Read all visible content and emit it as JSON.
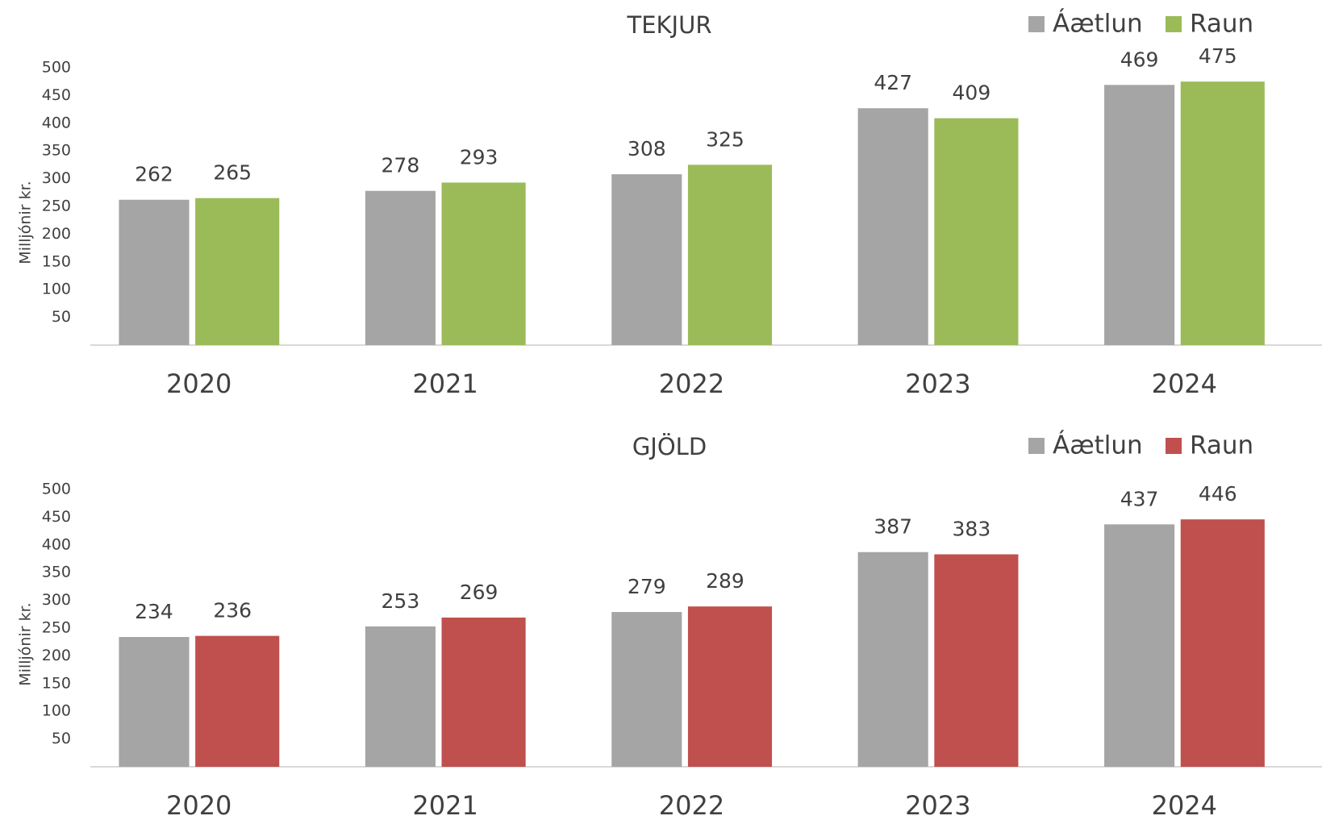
{
  "chart_data": [
    {
      "type": "bar",
      "title": "TEKJUR",
      "y_label": "Milljónir kr.",
      "categories": [
        "2020",
        "2021",
        "2022",
        "2023",
        "2024"
      ],
      "series": [
        {
          "name": "Áætlun",
          "color": "#a5a5a5",
          "values": [
            262,
            278,
            308,
            427,
            469
          ]
        },
        {
          "name": "Raun",
          "color": "#9bbb59",
          "values": [
            265,
            293,
            325,
            409,
            475
          ]
        }
      ],
      "ylim": [
        0,
        500
      ],
      "yticks": [
        50,
        100,
        150,
        200,
        250,
        300,
        350,
        400,
        450,
        500
      ],
      "grid": false,
      "legend": "top-right"
    },
    {
      "type": "bar",
      "title": "GJÖLD",
      "y_label": "Milljónir kr.",
      "categories": [
        "2020",
        "2021",
        "2022",
        "2023",
        "2024"
      ],
      "series": [
        {
          "name": "Áætlun",
          "color": "#a5a5a5",
          "values": [
            234,
            253,
            279,
            387,
            437
          ]
        },
        {
          "name": "Raun",
          "color": "#c0504d",
          "values": [
            236,
            269,
            289,
            383,
            446
          ]
        }
      ],
      "ylim": [
        0,
        500
      ],
      "yticks": [
        50,
        100,
        150,
        200,
        250,
        300,
        350,
        400,
        450,
        500
      ],
      "grid": false,
      "legend": "top-right"
    }
  ]
}
